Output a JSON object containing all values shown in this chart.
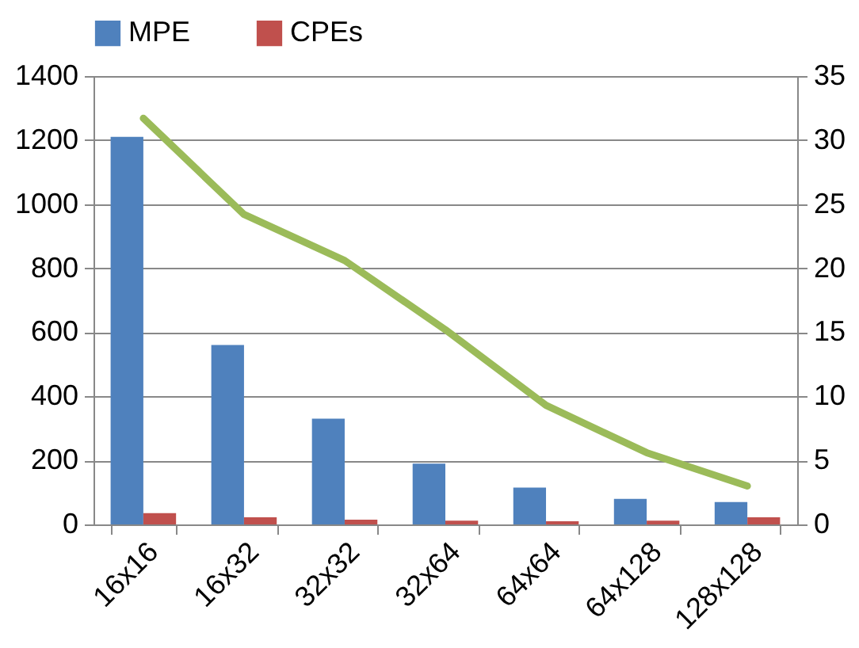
{
  "chart_data": {
    "type": "bar",
    "categories": [
      "16x16",
      "16x32",
      "32x32",
      "32x64",
      "64x64",
      "64x128",
      "128x128"
    ],
    "series": [
      {
        "name": "MPE",
        "color": "#4f81bd",
        "values": [
          1210,
          560,
          330,
          190,
          115,
          80,
          70
        ]
      },
      {
        "name": "CPEs",
        "color": "#c0504d",
        "values": [
          35,
          22,
          15,
          12,
          10,
          12,
          22
        ]
      },
      {
        "type": "line",
        "axis": "y2",
        "color": "#9bbb59",
        "values": [
          31.7,
          24.2,
          20.6,
          15.2,
          9.3,
          5.6,
          3.0
        ]
      }
    ],
    "ylim": [
      0,
      1400
    ],
    "yticks": [
      0,
      200,
      400,
      600,
      800,
      1000,
      1200,
      1400
    ],
    "y2lim": [
      0,
      35
    ],
    "y2ticks": [
      0,
      5,
      10,
      15,
      20,
      25,
      30,
      35
    ],
    "grid": "y",
    "legend": "top"
  }
}
